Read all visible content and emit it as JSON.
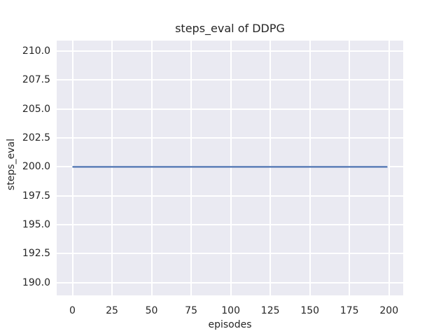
{
  "figure": {
    "background": "#ffffff",
    "text_color": "#262626"
  },
  "chart_data": {
    "type": "line",
    "title": "steps_eval of DDPG",
    "xlabel": "episodes",
    "ylabel": "steps_eval",
    "x_ticks": [
      0,
      25,
      50,
      75,
      100,
      125,
      150,
      175,
      200
    ],
    "y_ticks": [
      190.0,
      192.5,
      195.0,
      197.5,
      200.0,
      202.5,
      205.0,
      207.5,
      210.0
    ],
    "xlim": [
      -9.95,
      208.95
    ],
    "ylim": [
      188.9,
      210.9
    ],
    "grid": true,
    "legend_position": "none",
    "plot_background": "#eaeaf2",
    "gridline_color": "#ffffff",
    "series": [
      {
        "name": "steps_eval",
        "color": "#4c72b0",
        "x": [
          0,
          199
        ],
        "y": [
          200,
          200
        ],
        "description": "constant line at steps_eval = 200 from episode 0 to 199"
      }
    ]
  }
}
